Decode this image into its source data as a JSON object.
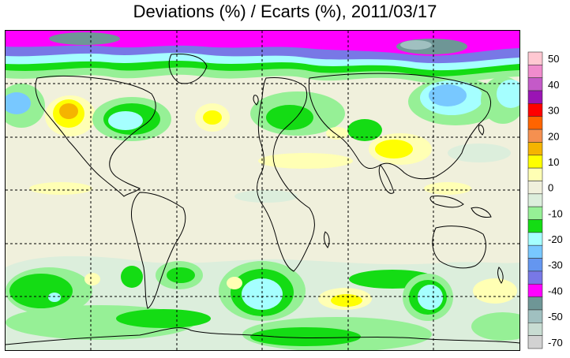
{
  "title": "Deviations (%) / Ecarts (%), 2011/03/17",
  "legend": {
    "tick_labels": [
      "50",
      "40",
      "30",
      "20",
      "10",
      "0",
      "-10",
      "-20",
      "-30",
      "-40",
      "-50",
      "-70"
    ],
    "bins": [
      {
        "color": "#ffc8d2"
      },
      {
        "color": "#f08ccd"
      },
      {
        "color": "#c45ac8"
      },
      {
        "color": "#9a14b4"
      },
      {
        "color": "#ff0000"
      },
      {
        "color": "#ff6400"
      },
      {
        "color": "#f59050"
      },
      {
        "color": "#f5b400"
      },
      {
        "color": "#ffff00"
      },
      {
        "color": "#ffffb4"
      },
      {
        "color": "#f0f0dc"
      },
      {
        "color": "#dceedc"
      },
      {
        "color": "#96f096"
      },
      {
        "color": "#14dc14"
      },
      {
        "color": "#a5ffff"
      },
      {
        "color": "#78c8ff"
      },
      {
        "color": "#6496f0"
      },
      {
        "color": "#7878e6"
      },
      {
        "color": "#ff00ff"
      },
      {
        "color": "#6e9696"
      },
      {
        "color": "#a0c0c0"
      },
      {
        "color": "#c8dcd2"
      },
      {
        "color": "#d2d2d2"
      }
    ]
  }
}
